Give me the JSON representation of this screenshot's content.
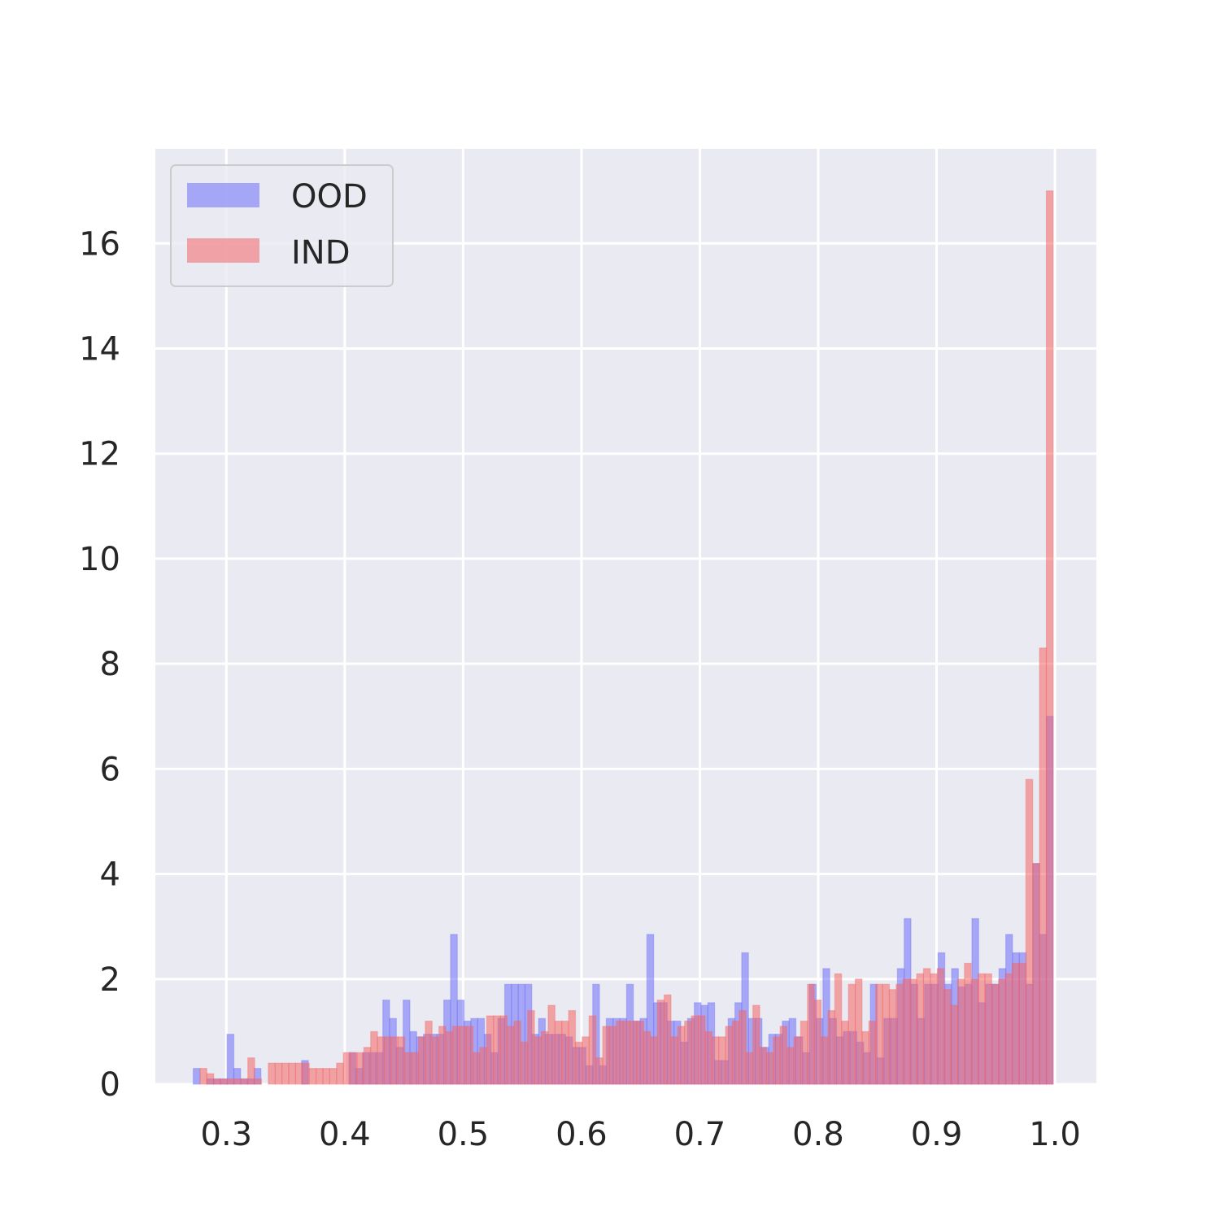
{
  "chart_data": {
    "type": "histogram",
    "title": "",
    "xlabel": "",
    "ylabel": "",
    "xlim": [
      0.24,
      1.035
    ],
    "ylim": [
      0,
      17.8
    ],
    "grid": true,
    "legend_position": "top-left",
    "x_ticks": [
      0.3,
      0.4,
      0.5,
      0.6,
      0.7,
      0.8,
      0.9,
      1.0
    ],
    "x_tick_labels": [
      "0.3",
      "0.4",
      "0.5",
      "0.6",
      "0.7",
      "0.8",
      "0.9",
      "1.0"
    ],
    "y_ticks": [
      0,
      2,
      4,
      6,
      8,
      10,
      12,
      14,
      16
    ],
    "y_tick_labels": [
      "0",
      "2",
      "4",
      "6",
      "8",
      "10",
      "12",
      "14",
      "16"
    ],
    "bin_edges_range": [
      0.272,
      0.9985
    ],
    "series": [
      {
        "name": "OOD",
        "color": "#6e6efa",
        "values": [
          0.3,
          0,
          0.1,
          0.1,
          0.1,
          0.95,
          0.3,
          0.1,
          0.1,
          0.3,
          0,
          0,
          0,
          0,
          0,
          0,
          0.45,
          0,
          0,
          0,
          0,
          0,
          0,
          0.6,
          0.3,
          0.6,
          0.6,
          0.6,
          1.6,
          1.25,
          0.7,
          1.6,
          1.0,
          0.9,
          0.95,
          0.95,
          0.95,
          1.6,
          2.85,
          1.6,
          1.2,
          1.25,
          1.25,
          0.95,
          0.6,
          1.25,
          1.9,
          1.9,
          1.9,
          1.9,
          0.95,
          1.25,
          0.95,
          0.95,
          0.95,
          0.9,
          0.7,
          0.7,
          0.35,
          1.9,
          0.35,
          1.25,
          1.25,
          1.25,
          1.9,
          1.2,
          1.25,
          2.85,
          1.55,
          1.55,
          1.2,
          1.2,
          0.8,
          1.25,
          1.55,
          1.5,
          1.55,
          0.45,
          0.45,
          1.25,
          1.55,
          2.5,
          1.25,
          1.25,
          0.7,
          0.95,
          0.95,
          1.2,
          1.25,
          0.9,
          0.6,
          1.9,
          1.25,
          2.2,
          1.25,
          0.9,
          1.0,
          1.0,
          0.8,
          0.6,
          1.9,
          0.5,
          1.25,
          1.25,
          2.2,
          3.15,
          1.9,
          1.25,
          1.9,
          1.9,
          2.5,
          1.9,
          2.2,
          1.85,
          1.9,
          3.15,
          1.55,
          1.9,
          1.9,
          2.2,
          2.85,
          2.5,
          2.5,
          1.9,
          4.2,
          2.85,
          7.0
        ]
      },
      {
        "name": "IND",
        "color": "#f46464",
        "values": [
          0,
          0.3,
          0.2,
          0.1,
          0.1,
          0.1,
          0.1,
          0.1,
          0.5,
          0.1,
          0,
          0.4,
          0.4,
          0.4,
          0.4,
          0.4,
          0.4,
          0.3,
          0.3,
          0.3,
          0.3,
          0.4,
          0.6,
          0.6,
          0.6,
          0.7,
          1.0,
          0.9,
          0.9,
          0.9,
          0.9,
          0.6,
          0.6,
          0.9,
          1.2,
          0.9,
          1.1,
          1.0,
          1.1,
          1.1,
          1.1,
          0.6,
          0.7,
          1.3,
          1.3,
          1.3,
          1.1,
          1.2,
          0.8,
          1.4,
          0.9,
          1.0,
          1.5,
          1.2,
          1.2,
          1.4,
          0.8,
          0.9,
          1.3,
          0.5,
          1.1,
          1.1,
          1.2,
          1.2,
          1.2,
          1.2,
          1.0,
          0.9,
          1.6,
          1.7,
          0.9,
          1.1,
          1.2,
          1.3,
          1.3,
          1.0,
          0.9,
          0.9,
          1.1,
          1.2,
          1.4,
          0.6,
          1.5,
          0.7,
          0.6,
          0.9,
          1.1,
          0.7,
          0.9,
          1.2,
          1.9,
          1.6,
          0.9,
          1.4,
          2.1,
          1.2,
          1.9,
          2.0,
          1.0,
          1.2,
          1.9,
          1.9,
          1.8,
          1.9,
          2.0,
          2.0,
          2.1,
          2.2,
          2.1,
          2.2,
          1.8,
          1.5,
          2.0,
          2.3,
          2.0,
          2.1,
          2.1,
          1.9,
          2.0,
          2.1,
          2.3,
          2.3,
          5.8,
          4.2,
          8.3,
          17.0
        ]
      }
    ]
  }
}
